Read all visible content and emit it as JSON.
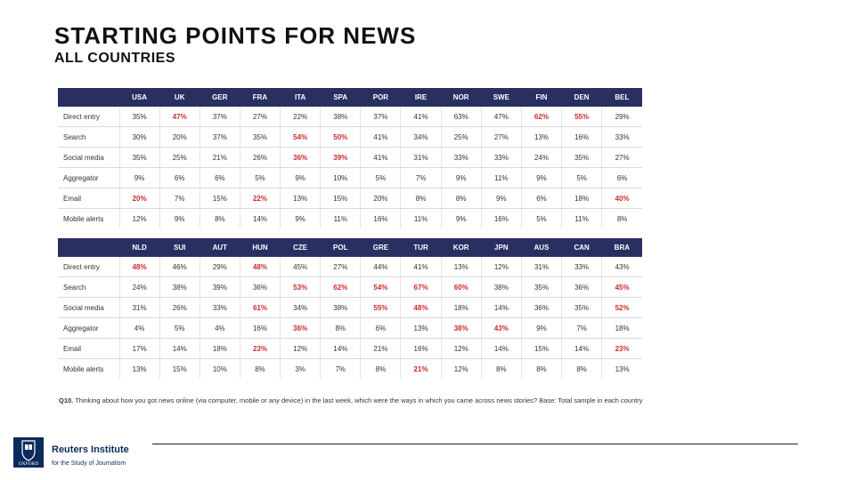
{
  "title": "STARTING POINTS FOR NEWS",
  "subtitle": "ALL COUNTRIES",
  "table1": {
    "headers": [
      "USA",
      "UK",
      "GER",
      "FRA",
      "ITA",
      "SPA",
      "POR",
      "IRE",
      "NOR",
      "SWE",
      "FIN",
      "DEN",
      "BEL"
    ],
    "rows": [
      {
        "label": "Direct entry",
        "values": [
          "35%",
          "47%",
          "37%",
          "27%",
          "22%",
          "38%",
          "37%",
          "41%",
          "63%",
          "47%",
          "62%",
          "55%",
          "29%"
        ],
        "highlight": [
          false,
          true,
          false,
          false,
          false,
          false,
          false,
          false,
          false,
          false,
          true,
          true,
          false
        ]
      },
      {
        "label": "Search",
        "values": [
          "30%",
          "20%",
          "37%",
          "35%",
          "54%",
          "50%",
          "41%",
          "34%",
          "25%",
          "27%",
          "13%",
          "16%",
          "33%"
        ],
        "highlight": [
          false,
          false,
          false,
          false,
          true,
          true,
          false,
          false,
          false,
          false,
          false,
          false,
          false
        ]
      },
      {
        "label": "Social media",
        "values": [
          "35%",
          "25%",
          "21%",
          "26%",
          "36%",
          "39%",
          "41%",
          "31%",
          "33%",
          "33%",
          "24%",
          "35%",
          "27%"
        ],
        "highlight": [
          false,
          false,
          false,
          false,
          true,
          true,
          false,
          false,
          false,
          false,
          false,
          false,
          false
        ]
      },
      {
        "label": "Aggregator",
        "values": [
          "9%",
          "6%",
          "6%",
          "5%",
          "9%",
          "10%",
          "5%",
          "7%",
          "9%",
          "11%",
          "9%",
          "5%",
          "6%"
        ],
        "highlight": [
          false,
          false,
          false,
          false,
          false,
          false,
          false,
          false,
          false,
          false,
          false,
          false,
          false
        ]
      },
      {
        "label": "Email",
        "values": [
          "20%",
          "7%",
          "15%",
          "22%",
          "13%",
          "15%",
          "20%",
          "8%",
          "8%",
          "9%",
          "6%",
          "18%",
          "40%"
        ],
        "highlight": [
          true,
          false,
          false,
          true,
          false,
          false,
          false,
          false,
          false,
          false,
          false,
          false,
          true
        ]
      },
      {
        "label": "Mobile alerts",
        "values": [
          "12%",
          "9%",
          "8%",
          "14%",
          "9%",
          "11%",
          "16%",
          "11%",
          "9%",
          "16%",
          "5%",
          "11%",
          "8%"
        ],
        "highlight": [
          false,
          false,
          false,
          false,
          false,
          false,
          false,
          false,
          false,
          false,
          false,
          false,
          false
        ]
      }
    ]
  },
  "table2": {
    "headers": [
      "NLD",
      "SUI",
      "AUT",
      "HUN",
      "CZE",
      "POL",
      "GRE",
      "TUR",
      "KOR",
      "JPN",
      "AUS",
      "CAN",
      "BRA"
    ],
    "rows": [
      {
        "label": "Direct entry",
        "values": [
          "48%",
          "46%",
          "29%",
          "48%",
          "45%",
          "27%",
          "44%",
          "41%",
          "13%",
          "12%",
          "31%",
          "33%",
          "43%"
        ],
        "highlight": [
          true,
          false,
          false,
          true,
          false,
          false,
          false,
          false,
          false,
          false,
          false,
          false,
          false
        ]
      },
      {
        "label": "Search",
        "values": [
          "24%",
          "38%",
          "39%",
          "36%",
          "53%",
          "62%",
          "54%",
          "67%",
          "60%",
          "38%",
          "35%",
          "36%",
          "45%"
        ],
        "highlight": [
          false,
          false,
          false,
          false,
          true,
          true,
          true,
          true,
          true,
          false,
          false,
          false,
          true
        ]
      },
      {
        "label": "Social media",
        "values": [
          "31%",
          "26%",
          "33%",
          "61%",
          "34%",
          "38%",
          "55%",
          "48%",
          "18%",
          "14%",
          "36%",
          "35%",
          "52%"
        ],
        "highlight": [
          false,
          false,
          false,
          true,
          false,
          false,
          true,
          true,
          false,
          false,
          false,
          false,
          true
        ]
      },
      {
        "label": "Aggregator",
        "values": [
          "4%",
          "5%",
          "4%",
          "16%",
          "36%",
          "8%",
          "6%",
          "13%",
          "38%",
          "43%",
          "9%",
          "7%",
          "18%"
        ],
        "highlight": [
          false,
          false,
          false,
          false,
          true,
          false,
          false,
          false,
          true,
          true,
          false,
          false,
          false
        ]
      },
      {
        "label": "Email",
        "values": [
          "17%",
          "14%",
          "18%",
          "23%",
          "12%",
          "14%",
          "21%",
          "16%",
          "12%",
          "14%",
          "15%",
          "14%",
          "23%"
        ],
        "highlight": [
          false,
          false,
          false,
          true,
          false,
          false,
          false,
          false,
          false,
          false,
          false,
          false,
          true
        ]
      },
      {
        "label": "Mobile alerts",
        "values": [
          "13%",
          "15%",
          "10%",
          "8%",
          "3%",
          "7%",
          "8%",
          "21%",
          "12%",
          "8%",
          "8%",
          "8%",
          "13%"
        ],
        "highlight": [
          false,
          false,
          false,
          false,
          false,
          false,
          false,
          true,
          false,
          false,
          false,
          false,
          false
        ]
      }
    ]
  },
  "footnote": {
    "question_id": "Q10.",
    "text": " Thinking about how you got news online (via computer, mobile or any device) in the last week, which were the ways in which you came across news stories? Base: Total sample in each country"
  },
  "logo": {
    "name": "Reuters Institute",
    "tagline": "for the Study of Journalism",
    "crest_label": "OXFORD"
  },
  "colors": {
    "header_bg": "#2a2f62",
    "highlight": "#cc2a2a",
    "brand": "#0c2a5c"
  }
}
